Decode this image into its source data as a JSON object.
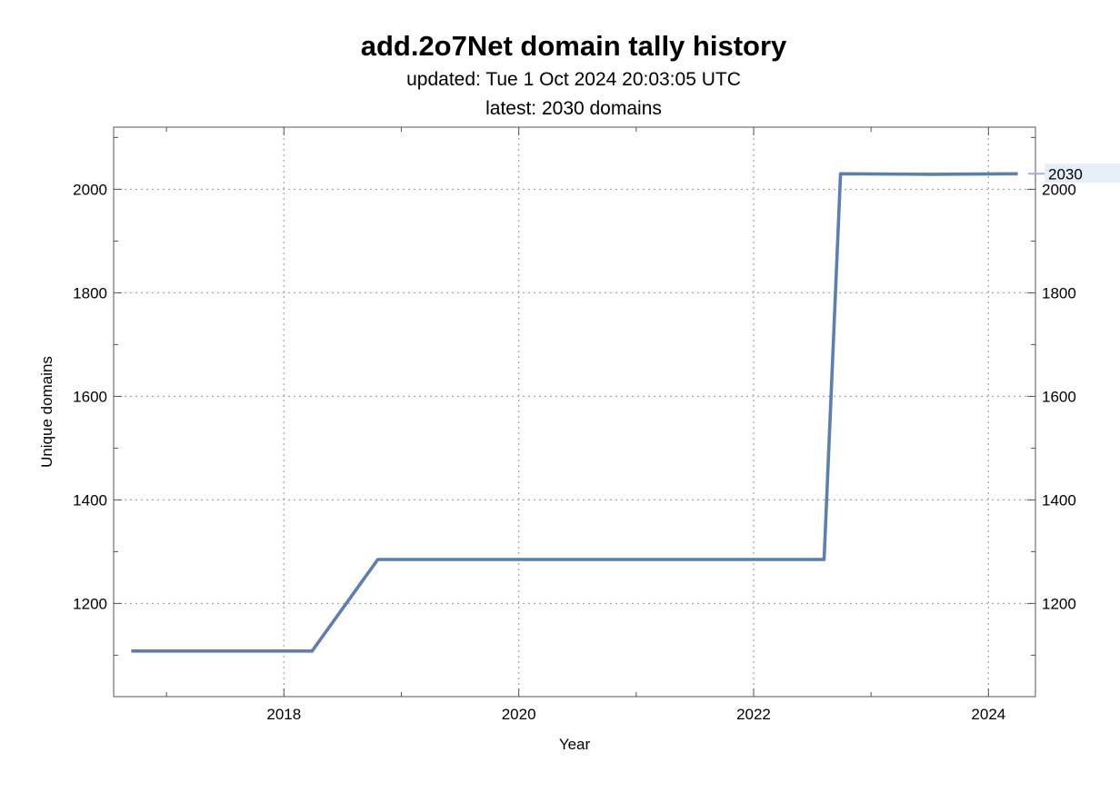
{
  "chart_data": {
    "type": "line",
    "title": "add.2o7Net domain tally history",
    "subtitle_updated": "updated: Tue 1 Oct 2024 20:03:05 UTC",
    "subtitle_latest": "latest: 2030 domains",
    "xlabel": "Year",
    "ylabel": "Unique domains",
    "xlim": [
      2016.55,
      2024.4
    ],
    "ylim": [
      1020,
      2120
    ],
    "x_ticks": [
      2018,
      2020,
      2022,
      2024
    ],
    "y_ticks": [
      1200,
      1400,
      1600,
      1800,
      2000
    ],
    "grid": true,
    "color": "#5B7FB3",
    "series": [
      {
        "points": [
          [
            2016.7,
            1108
          ],
          [
            2018.24,
            1108
          ],
          [
            2018.8,
            1285
          ],
          [
            2022.6,
            1285
          ],
          [
            2022.74,
            2030
          ],
          [
            2023.5,
            2029
          ],
          [
            2024.25,
            2030
          ]
        ]
      }
    ],
    "end_label": "2030"
  }
}
